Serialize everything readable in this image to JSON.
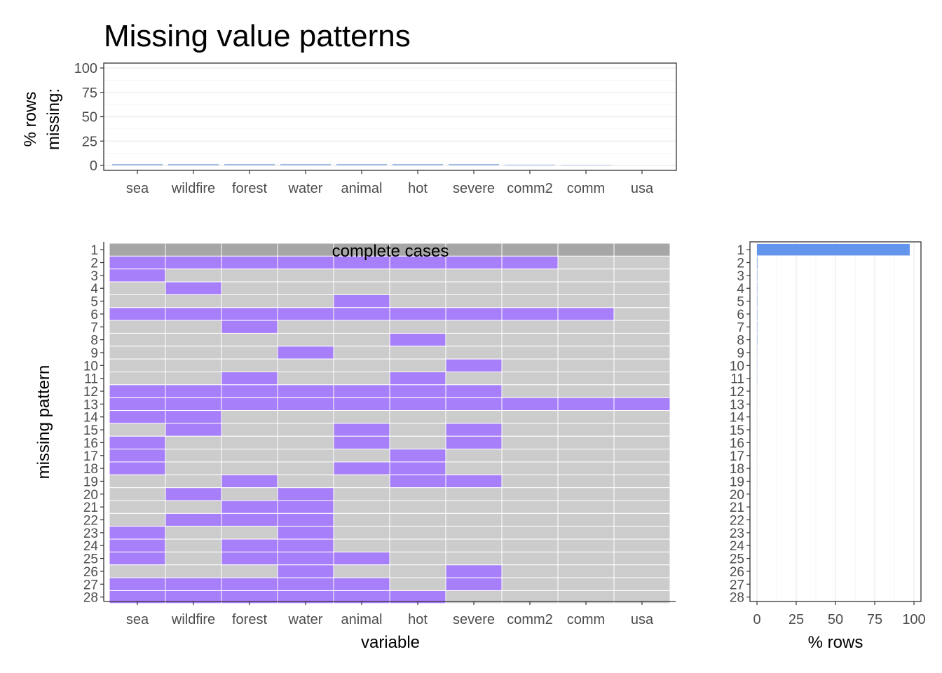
{
  "chart_data": [
    {
      "type": "bar",
      "panel": "top",
      "title": "Missing value patterns",
      "ylabel": "% rows\nmissing:",
      "xlabel": "",
      "categories": [
        "sea",
        "wildfire",
        "forest",
        "water",
        "animal",
        "hot",
        "severe",
        "comm2",
        "comm",
        "usa"
      ],
      "values": [
        1.5,
        1.5,
        1.5,
        1.5,
        1.5,
        1.5,
        1.5,
        0.8,
        0.6,
        0
      ],
      "ylim": [
        0,
        100
      ],
      "yticks": [
        "0",
        "25",
        "50",
        "75",
        "100"
      ],
      "grid": true,
      "colors": {
        "bar": "#a6bde3"
      }
    },
    {
      "type": "heatmap",
      "panel": "main",
      "xlabel": "variable",
      "ylabel": "missing pattern",
      "columns": [
        "sea",
        "wildfire",
        "forest",
        "water",
        "animal",
        "hot",
        "severe",
        "comm2",
        "comm",
        "usa"
      ],
      "row_labels": [
        "1",
        "2",
        "3",
        "4",
        "5",
        "6",
        "7",
        "8",
        "9",
        "10",
        "11",
        "12",
        "13",
        "14",
        "15",
        "16",
        "17",
        "18",
        "19",
        "20",
        "21",
        "22",
        "23",
        "24",
        "25",
        "26",
        "27",
        "28"
      ],
      "annotation": "complete cases",
      "values": [
        [
          0,
          0,
          0,
          0,
          0,
          0,
          0,
          0,
          0,
          0
        ],
        [
          1,
          1,
          1,
          1,
          1,
          1,
          1,
          1,
          0,
          0
        ],
        [
          1,
          0,
          0,
          0,
          0,
          0,
          0,
          0,
          0,
          0
        ],
        [
          0,
          1,
          0,
          0,
          0,
          0,
          0,
          0,
          0,
          0
        ],
        [
          0,
          0,
          0,
          0,
          1,
          0,
          0,
          0,
          0,
          0
        ],
        [
          1,
          1,
          1,
          1,
          1,
          1,
          1,
          1,
          1,
          0
        ],
        [
          0,
          0,
          1,
          0,
          0,
          0,
          0,
          0,
          0,
          0
        ],
        [
          0,
          0,
          0,
          0,
          0,
          1,
          0,
          0,
          0,
          0
        ],
        [
          0,
          0,
          0,
          1,
          0,
          0,
          0,
          0,
          0,
          0
        ],
        [
          0,
          0,
          0,
          0,
          0,
          0,
          1,
          0,
          0,
          0
        ],
        [
          0,
          0,
          1,
          0,
          0,
          1,
          0,
          0,
          0,
          0
        ],
        [
          1,
          1,
          1,
          1,
          1,
          1,
          1,
          0,
          0,
          0
        ],
        [
          1,
          1,
          1,
          1,
          1,
          1,
          1,
          1,
          1,
          1
        ],
        [
          1,
          1,
          0,
          0,
          0,
          0,
          0,
          0,
          0,
          0
        ],
        [
          0,
          1,
          0,
          0,
          1,
          0,
          1,
          0,
          0,
          0
        ],
        [
          1,
          0,
          0,
          0,
          1,
          0,
          1,
          0,
          0,
          0
        ],
        [
          1,
          0,
          0,
          0,
          0,
          1,
          0,
          0,
          0,
          0
        ],
        [
          1,
          0,
          0,
          0,
          1,
          1,
          0,
          0,
          0,
          0
        ],
        [
          0,
          0,
          1,
          0,
          0,
          1,
          1,
          0,
          0,
          0
        ],
        [
          0,
          1,
          0,
          1,
          0,
          0,
          0,
          0,
          0,
          0
        ],
        [
          0,
          0,
          1,
          1,
          0,
          0,
          0,
          0,
          0,
          0
        ],
        [
          0,
          1,
          1,
          1,
          0,
          0,
          0,
          0,
          0,
          0
        ],
        [
          1,
          0,
          0,
          1,
          0,
          0,
          0,
          0,
          0,
          0
        ],
        [
          1,
          0,
          1,
          1,
          0,
          0,
          0,
          0,
          0,
          0
        ],
        [
          1,
          0,
          1,
          1,
          1,
          0,
          0,
          0,
          0,
          0
        ],
        [
          0,
          0,
          0,
          1,
          0,
          0,
          1,
          0,
          0,
          0
        ],
        [
          1,
          1,
          1,
          1,
          1,
          0,
          1,
          0,
          0,
          0
        ],
        [
          1,
          1,
          1,
          1,
          1,
          1,
          0,
          0,
          0,
          0
        ]
      ],
      "colors": {
        "complete": "#a6a6a6",
        "missing": "#a87ffb",
        "present": "#cccccc"
      }
    },
    {
      "type": "bar",
      "panel": "right",
      "orientation": "horizontal",
      "xlabel": "% rows",
      "ylabel": "",
      "categories": [
        "1",
        "2",
        "3",
        "4",
        "5",
        "6",
        "7",
        "8",
        "9",
        "10",
        "11",
        "12",
        "13",
        "14",
        "15",
        "16",
        "17",
        "18",
        "19",
        "20",
        "21",
        "22",
        "23",
        "24",
        "25",
        "26",
        "27",
        "28"
      ],
      "values": [
        97.3,
        0.3,
        0.2,
        0.2,
        0.2,
        0.2,
        0.2,
        0.2,
        0.1,
        0.1,
        0.1,
        0.05,
        0.05,
        0.05,
        0.05,
        0.05,
        0.05,
        0.05,
        0.05,
        0.03,
        0.03,
        0.03,
        0.03,
        0.03,
        0.03,
        0.03,
        0.03,
        0.03
      ],
      "xlim": [
        0,
        100
      ],
      "xticks": [
        "0",
        "25",
        "50",
        "75",
        "100"
      ],
      "grid": true,
      "colors": {
        "bar": "#6495ed"
      }
    }
  ]
}
